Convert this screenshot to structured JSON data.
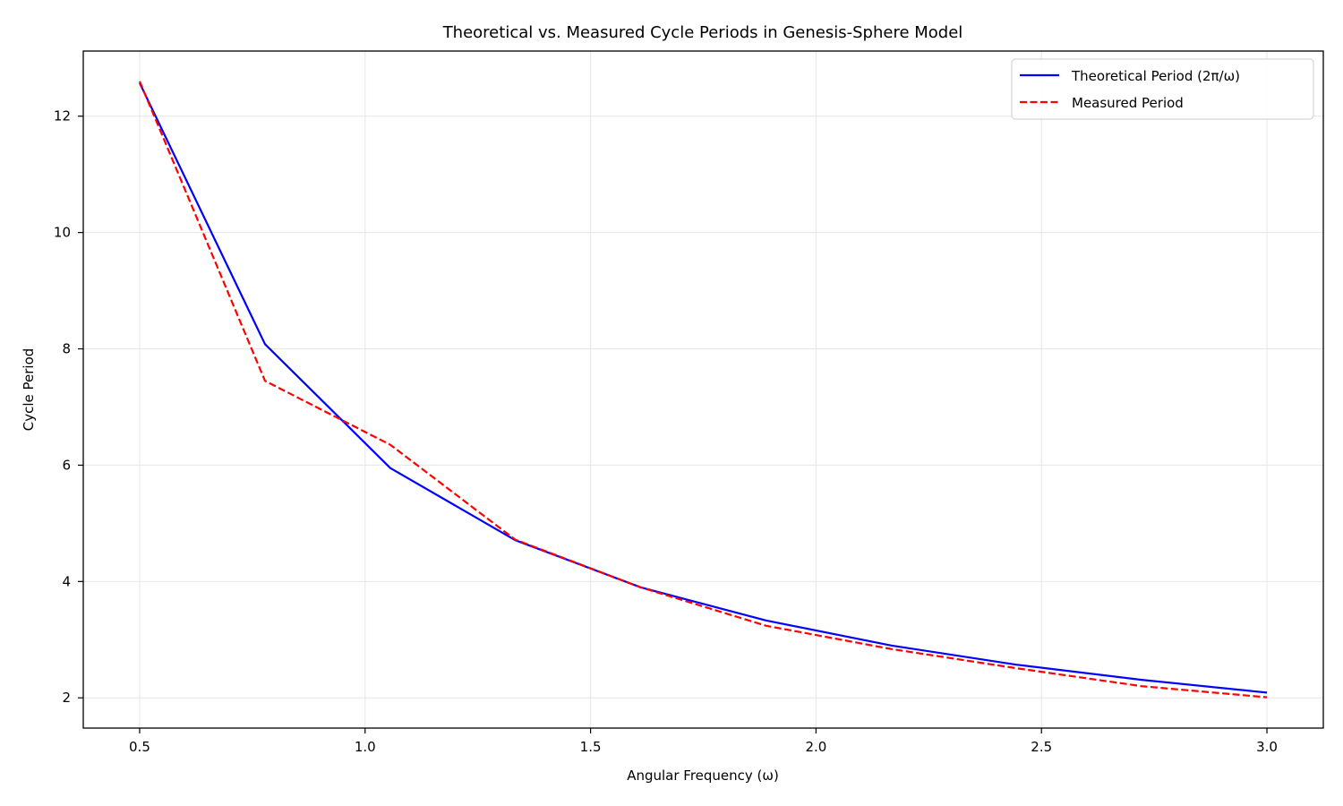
{
  "chart_data": {
    "type": "line",
    "title": "Theoretical vs. Measured Cycle Periods in Genesis-Sphere Model",
    "xlabel": "Angular Frequency (ω)",
    "ylabel": "Cycle Period",
    "xlim": [
      0.375,
      3.125
    ],
    "ylim": [
      1.48,
      13.12
    ],
    "xticks": [
      0.5,
      1.0,
      1.5,
      2.0,
      2.5,
      3.0
    ],
    "xtick_labels": [
      "0.5",
      "1.0",
      "1.5",
      "2.0",
      "2.5",
      "3.0"
    ],
    "yticks": [
      2,
      4,
      6,
      8,
      10,
      12
    ],
    "ytick_labels": [
      "2",
      "4",
      "6",
      "8",
      "10",
      "12"
    ],
    "grid": true,
    "legend_position": "top-right",
    "x": [
      0.5,
      0.778,
      1.056,
      1.333,
      1.611,
      1.889,
      2.167,
      2.444,
      2.722,
      3.0
    ],
    "series": [
      {
        "name": "Theoretical Period (2π/ω)",
        "color": "#0000ff",
        "style": "solid",
        "values": [
          12.57,
          8.08,
          5.95,
          4.71,
          3.9,
          3.33,
          2.9,
          2.57,
          2.31,
          2.09
        ]
      },
      {
        "name": "Measured Period",
        "color": "#ff0000",
        "style": "dashed",
        "values": [
          12.6,
          7.45,
          6.35,
          4.72,
          3.9,
          3.24,
          2.84,
          2.51,
          2.2,
          2.01
        ]
      }
    ]
  }
}
